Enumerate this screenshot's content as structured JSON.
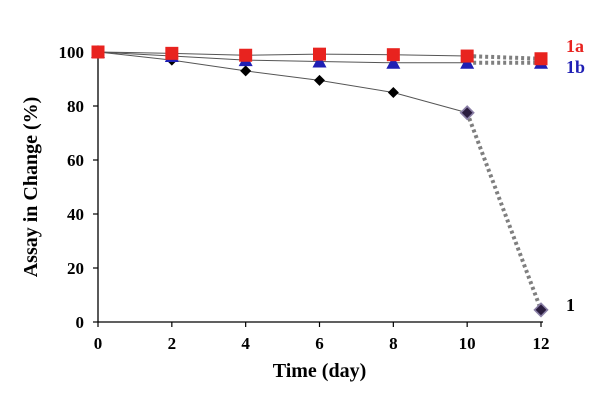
{
  "chart_data": {
    "type": "line",
    "title": "",
    "xlabel": "Time (day)",
    "ylabel": "Assay in Change (%)",
    "xlim": [
      0,
      12
    ],
    "ylim": [
      0,
      100
    ],
    "xticks": [
      0,
      2,
      4,
      6,
      8,
      10,
      12
    ],
    "yticks": [
      0,
      20,
      40,
      60,
      80,
      100
    ],
    "grid": false,
    "legend": "none",
    "series": [
      {
        "name": "1a",
        "label": "1a",
        "color": "#e8231f",
        "marker": "square",
        "x": [
          0,
          2,
          4,
          6,
          8,
          10,
          12
        ],
        "values": [
          100,
          99.5,
          98.8,
          99.2,
          99.0,
          98.5,
          97.5
        ],
        "dotted_from_x": 10
      },
      {
        "name": "1b",
        "label": "1b",
        "color": "#1f1fb4",
        "marker": "triangle",
        "x": [
          0,
          2,
          4,
          6,
          8,
          10,
          12
        ],
        "values": [
          100,
          98.5,
          97.0,
          96.5,
          96.0,
          96.0,
          96.0
        ],
        "dotted_from_x": 10
      },
      {
        "name": "1",
        "label": "1",
        "color": "#000000",
        "marker": "diamond",
        "x": [
          0,
          2,
          4,
          6,
          8,
          10,
          12
        ],
        "values": [
          100,
          97.0,
          93.0,
          89.5,
          85.0,
          77.5,
          4.5
        ],
        "dotted_from_x": 10
      }
    ]
  }
}
